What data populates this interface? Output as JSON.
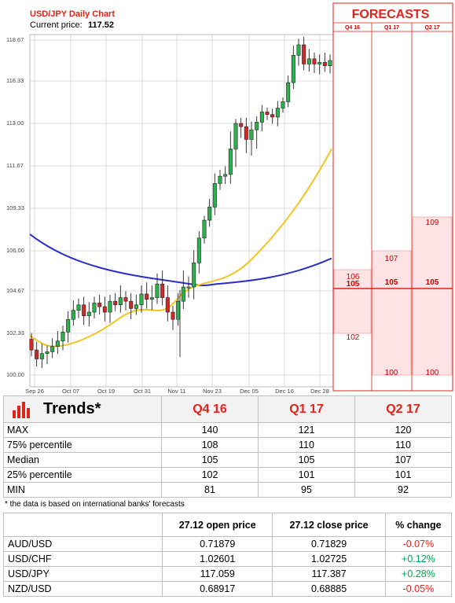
{
  "chart": {
    "title": "USD/JPY Daily Chart",
    "price_label": "Current price:",
    "price_value": "117.52",
    "y_ticks": [
      "118.67",
      "116.33",
      "113.00",
      "111.67",
      "109.33",
      "106.00",
      "104.67",
      "102.33",
      "100.00"
    ],
    "x_ticks": [
      "Sep 26",
      "Oct 07",
      "Oct 19",
      "Oct 31",
      "Nov 11",
      "Nov 23",
      "Dec 05",
      "Dec 16",
      "Dec 28"
    ]
  },
  "chart_data": {
    "type": "candlestick",
    "title": "USD/JPY Daily Chart",
    "ylim": [
      100,
      118.67
    ],
    "close_series": [
      101.4,
      100.9,
      101.2,
      101.3,
      101.6,
      101.9,
      102.4,
      103.1,
      103.6,
      103.9,
      103.3,
      103.5,
      104.0,
      103.8,
      103.5,
      104.1,
      103.9,
      104.3,
      104.1,
      103.7,
      103.9,
      104.5,
      104.2,
      104.3,
      104.9,
      104.3,
      103.5,
      103.1,
      104.1,
      104.8,
      104.8,
      105.6,
      107.0,
      108.4,
      109.4,
      110.7,
      111.1,
      111.2,
      112.2,
      113.0,
      112.9,
      112.5,
      112.8,
      113.1,
      113.9,
      113.7,
      113.5,
      114.2,
      114.7,
      116.2,
      117.8,
      118.4,
      117.3,
      117.6,
      117.3,
      117.4,
      117.2,
      117.5
    ],
    "series": [
      {
        "name": "MA long (blue)",
        "values": [
          107.3,
          104.9,
          104.9,
          105.75
        ]
      },
      {
        "name": "MA short (yellow)",
        "values": [
          102.2,
          101.6,
          103.1,
          104.2,
          112.2
        ]
      }
    ],
    "forecast_columns": [
      "Q4 16",
      "Q1 17",
      "Q2 17"
    ],
    "forecast_bands": {
      "Q4 16": [
        102,
        106
      ],
      "Q1 17": [
        100,
        107
      ],
      "Q2 17": [
        100,
        109
      ]
    },
    "forecast_median": 105
  },
  "forecast": {
    "title": "FORECASTS",
    "columns": [
      "Q4 16",
      "Q1 17",
      "Q2 17"
    ],
    "labels": {
      "q4_high": "106",
      "q4_med": "105",
      "q4_low": "102",
      "q1_high": "107",
      "q1_med": "105",
      "q1_low": "100",
      "q2_high": "109",
      "q2_med": "105",
      "q2_low": "100"
    }
  },
  "trends": {
    "title": "Trends*",
    "columns": [
      "Q4 16",
      "Q1 17",
      "Q2 17"
    ],
    "rows": [
      {
        "label": "MAX",
        "v": [
          "140",
          "121",
          "120"
        ]
      },
      {
        "label": "75% percentile",
        "v": [
          "108",
          "110",
          "110"
        ]
      },
      {
        "label": "Median",
        "v": [
          "105",
          "105",
          "107"
        ]
      },
      {
        "label": "25% percentile",
        "v": [
          "102",
          "101",
          "101"
        ]
      },
      {
        "label": "MIN",
        "v": [
          "81",
          "95",
          "92"
        ]
      }
    ],
    "note": "* the data is based on international banks' forecasts"
  },
  "prices": {
    "headers": [
      "27.12 open price",
      "27.12 close price",
      "% change"
    ],
    "rows": [
      {
        "pair": "AUD/USD",
        "open": "0.71879",
        "close": "0.71829",
        "change": "-0.07%"
      },
      {
        "pair": "USD/CHF",
        "open": "1.02601",
        "close": "1.02725",
        "change": "+0.12%"
      },
      {
        "pair": "USD/JPY",
        "open": "117.059",
        "close": "117.387",
        "change": "+0.28%"
      },
      {
        "pair": "NZD/USD",
        "open": "0.68917",
        "close": "0.68885",
        "change": "-0.05%"
      }
    ]
  },
  "colors": {
    "brand_red": "#e2231a",
    "ma_long": "#2d2dc8",
    "ma_short": "#f5c51f",
    "positive": "#00a650",
    "negative": "#e2231a"
  }
}
